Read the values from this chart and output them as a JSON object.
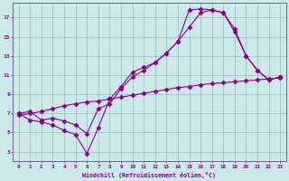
{
  "xlabel": "Windchill (Refroidissement éolien,°C)",
  "background_color": "#cce8e8",
  "line_color": "#880088",
  "grid_color": "#99bbbb",
  "xlim": [
    -0.5,
    23.5
  ],
  "ylim": [
    2.0,
    18.5
  ],
  "yticks": [
    3,
    5,
    7,
    9,
    11,
    13,
    15,
    17
  ],
  "xticks": [
    0,
    1,
    2,
    3,
    4,
    5,
    6,
    7,
    8,
    9,
    10,
    11,
    12,
    13,
    14,
    15,
    16,
    17,
    18,
    19,
    20,
    21,
    22,
    23
  ],
  "line1_x": [
    0,
    1,
    2,
    3,
    4,
    5,
    6,
    7,
    8,
    9,
    10,
    11,
    12,
    13,
    14,
    15,
    16,
    17,
    18,
    19,
    20,
    21,
    22,
    23
  ],
  "line1_y": [
    7.0,
    7.2,
    6.3,
    6.5,
    6.2,
    5.8,
    4.9,
    7.5,
    8.0,
    9.6,
    10.8,
    11.5,
    12.3,
    13.3,
    14.5,
    16.0,
    17.5,
    17.8,
    17.5,
    15.5,
    13.0,
    11.5,
    10.5,
    10.8
  ],
  "line2_x": [
    0,
    1,
    2,
    3,
    4,
    5,
    6,
    7,
    8,
    9,
    10,
    11,
    12,
    13,
    14,
    15,
    16,
    17,
    18,
    19,
    20,
    21,
    22,
    23
  ],
  "line2_y": [
    7.0,
    6.3,
    6.1,
    5.8,
    5.2,
    4.8,
    2.8,
    5.5,
    8.5,
    9.8,
    11.3,
    11.8,
    12.3,
    13.3,
    14.5,
    17.8,
    17.9,
    17.8,
    17.5,
    15.8,
    13.0,
    11.5,
    10.5,
    10.8
  ],
  "line3_x": [
    0,
    1,
    2,
    3,
    4,
    5,
    6,
    7,
    8,
    9,
    10,
    11,
    12,
    13,
    14,
    15,
    16,
    17,
    18,
    19,
    20,
    21,
    22,
    23
  ],
  "line3_y": [
    6.8,
    7.0,
    7.2,
    7.5,
    7.8,
    8.0,
    8.2,
    8.3,
    8.5,
    8.7,
    8.9,
    9.1,
    9.3,
    9.5,
    9.7,
    9.8,
    10.0,
    10.1,
    10.2,
    10.3,
    10.4,
    10.5,
    10.6,
    10.7
  ]
}
